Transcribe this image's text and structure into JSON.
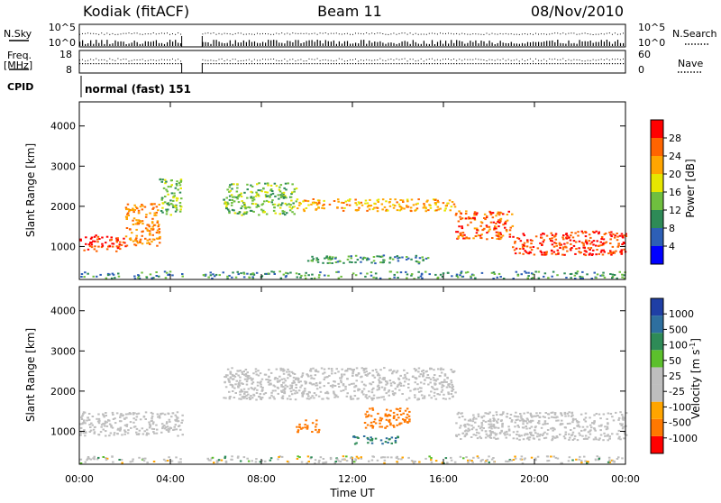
{
  "header": {
    "station": "Kodiak (fitACF)",
    "beam": "Beam 11",
    "date": "08/Nov/2010"
  },
  "top_panels": {
    "nsky_label": "N.Sky",
    "nsky_ticks": [
      "10^5",
      "10^0"
    ],
    "nsearch_label": "N.Search",
    "nsearch_ticks": [
      "10^5",
      "10^0"
    ],
    "freq_label": "Freq.",
    "freq_unit": "[MHz]",
    "freq_ticks": [
      "18",
      "8"
    ],
    "nave_label": "Nave",
    "nave_ticks": [
      "60",
      "0"
    ],
    "cpid_label": "CPID",
    "cpid_value": "normal (fast) 151"
  },
  "colors": {
    "power_scale": [
      "#0000ff",
      "#2d5fb6",
      "#2e8b57",
      "#6fbf3f",
      "#e6e600",
      "#ffa500",
      "#ff6400",
      "#ff0000"
    ],
    "velocity_scale": [
      "#1f3fa5",
      "#2e6f9f",
      "#2e8b57",
      "#5cc02c",
      "#bebebe",
      "#bebebe",
      "#ffa500",
      "#ff7800",
      "#ff0000"
    ],
    "ground_scatter": "#bebebe"
  },
  "chart_data": [
    {
      "type": "heatmap",
      "panel": "power",
      "xlabel": "",
      "ylabel": "Slant Range [km]",
      "xlim": [
        "00:00",
        "24:00"
      ],
      "ylim": [
        180,
        4600
      ],
      "y_ticks": [
        "4000",
        "3000",
        "2000",
        "1000"
      ],
      "y_tick_values": [
        4000,
        3000,
        2000,
        1000
      ],
      "colorbar_label": "Power [dB]",
      "colorbar_ticks": [
        "28",
        "24",
        "20",
        "16",
        "12",
        "8",
        "4"
      ],
      "colorbar_range": [
        0,
        32
      ],
      "data_gap_hours": [
        4.5,
        5.4
      ],
      "echo_bands": [
        {
          "x": [
            0.0,
            2.0
          ],
          "y": [
            900,
            1300
          ],
          "power": 28
        },
        {
          "x": [
            2.0,
            3.5
          ],
          "y": [
            1000,
            2100
          ],
          "power": 24
        },
        {
          "x": [
            3.5,
            4.5
          ],
          "y": [
            1800,
            2700
          ],
          "power": 14
        },
        {
          "x": [
            6.3,
            9.5
          ],
          "y": [
            1800,
            2600
          ],
          "power": 14
        },
        {
          "x": [
            9.5,
            16.5
          ],
          "y": [
            1900,
            2200
          ],
          "power": 22
        },
        {
          "x": [
            16.5,
            19.0
          ],
          "y": [
            1200,
            1900
          ],
          "power": 26
        },
        {
          "x": [
            19.0,
            24.0
          ],
          "y": [
            800,
            1400
          ],
          "power": 28
        },
        {
          "x": [
            10.0,
            15.5
          ],
          "y": [
            600,
            800
          ],
          "power": 10
        }
      ]
    },
    {
      "type": "heatmap",
      "panel": "velocity",
      "xlabel": "Time UT",
      "ylabel": "Slant Range [km]",
      "xlim": [
        "00:00",
        "24:00"
      ],
      "ylim": [
        180,
        4600
      ],
      "x_ticks": [
        "00:00",
        "04:00",
        "08:00",
        "12:00",
        "16:00",
        "20:00",
        "00:00"
      ],
      "y_ticks": [
        "4000",
        "3000",
        "2000",
        "1000"
      ],
      "y_tick_values": [
        4000,
        3000,
        2000,
        1000
      ],
      "colorbar_label": "Velocity [m s^-1]",
      "colorbar_ticks": [
        "1000",
        "500",
        "100",
        "50",
        "25",
        "-25",
        "-100",
        "-500",
        "-1000"
      ],
      "data_gap_hours": [
        4.5,
        5.4
      ],
      "echo_bands": [
        {
          "x": [
            0.0,
            4.5
          ],
          "y": [
            900,
            1500
          ],
          "velocity": 0,
          "ground_scatter": true
        },
        {
          "x": [
            6.3,
            16.5
          ],
          "y": [
            1800,
            2600
          ],
          "velocity": 0,
          "ground_scatter": true
        },
        {
          "x": [
            16.5,
            24.0
          ],
          "y": [
            800,
            1500
          ],
          "velocity": 0,
          "ground_scatter": true
        },
        {
          "x": [
            12.5,
            14.5
          ],
          "y": [
            1100,
            1600
          ],
          "velocity": -200
        },
        {
          "x": [
            9.5,
            10.5
          ],
          "y": [
            1000,
            1300
          ],
          "velocity": -200
        },
        {
          "x": [
            12.0,
            14.0
          ],
          "y": [
            700,
            900
          ],
          "velocity": 100
        }
      ]
    }
  ]
}
